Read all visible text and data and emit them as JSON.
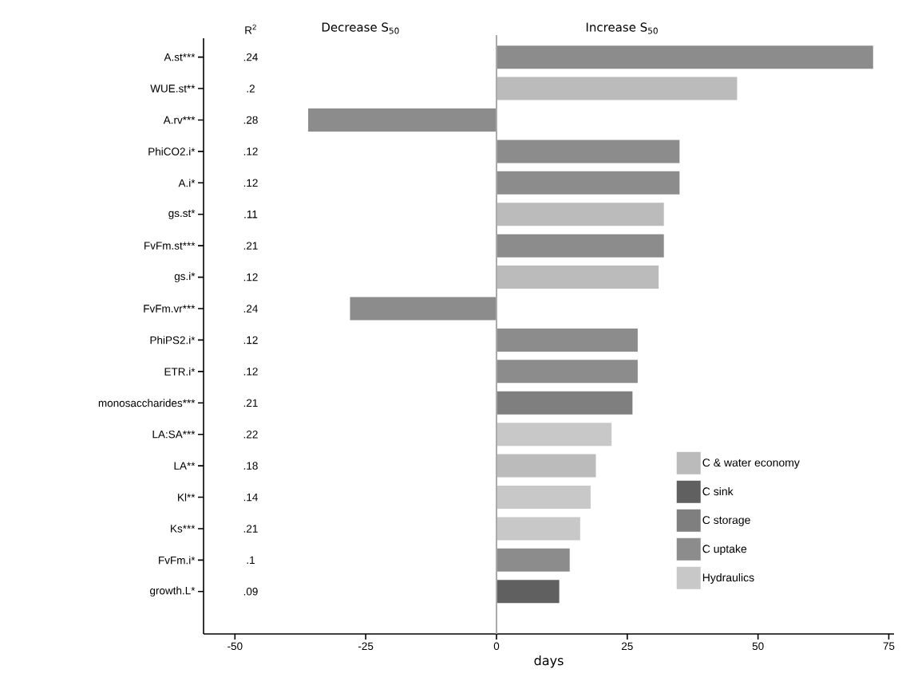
{
  "chart_data": {
    "type": "bar",
    "orientation": "horizontal",
    "xlabel": "days",
    "categories": [
      "A.st***",
      "WUE.st**",
      "A.rv***",
      "PhiCO2.i*",
      "A.i*",
      "gs.st*",
      "FvFm.st***",
      "gs.i*",
      "FvFm.vr***",
      "PhiPS2.i*",
      "ETR.i*",
      "monosaccharides***",
      "LA:SA***",
      "LA**",
      "Kl**",
      "Ks***",
      "FvFm.i*",
      "growth.L*"
    ],
    "series": [
      {
        "name": "C & water economy",
        "color": "#bbbbbb",
        "values": [
          null,
          46,
          null,
          null,
          null,
          32,
          null,
          31,
          null,
          null,
          null,
          null,
          null,
          19,
          null,
          null,
          null,
          null
        ]
      },
      {
        "name": "C sink",
        "color": "#606060",
        "values": [
          null,
          null,
          null,
          null,
          null,
          null,
          null,
          null,
          null,
          null,
          null,
          null,
          null,
          null,
          null,
          null,
          null,
          12
        ]
      },
      {
        "name": "C storage",
        "color": "#7f7f7f",
        "values": [
          null,
          null,
          null,
          null,
          null,
          null,
          null,
          null,
          null,
          null,
          null,
          26,
          null,
          null,
          null,
          null,
          null,
          null
        ]
      },
      {
        "name": "C uptake",
        "color": "#8c8c8c",
        "values": [
          72,
          null,
          -36,
          35,
          35,
          null,
          32,
          null,
          -28,
          27,
          27,
          null,
          null,
          null,
          null,
          null,
          14,
          null
        ]
      },
      {
        "name": "Hydraulics",
        "color": "#c8c8c8",
        "values": [
          null,
          null,
          null,
          null,
          null,
          null,
          null,
          null,
          null,
          null,
          null,
          null,
          22,
          null,
          18,
          16,
          null,
          null
        ]
      }
    ],
    "xlim": [
      -56,
      76
    ],
    "xticks": [
      -50,
      -25,
      0,
      25,
      50,
      75
    ],
    "ref_lines": [
      {
        "axis": "x",
        "value": 0,
        "color": "#aaaaaa"
      }
    ],
    "legend": "bottom right",
    "annotations": [
      "R$^{2}$",
      "Decrease S$_{50}$",
      "Increase S$_{50}$",
      ".24",
      ".2",
      ".28",
      ".12",
      ".12",
      ".11",
      ".21",
      ".12",
      ".24",
      ".12",
      ".12",
      ".21",
      ".22",
      ".18",
      ".14",
      ".21",
      ".1",
      ".09"
    ]
  }
}
